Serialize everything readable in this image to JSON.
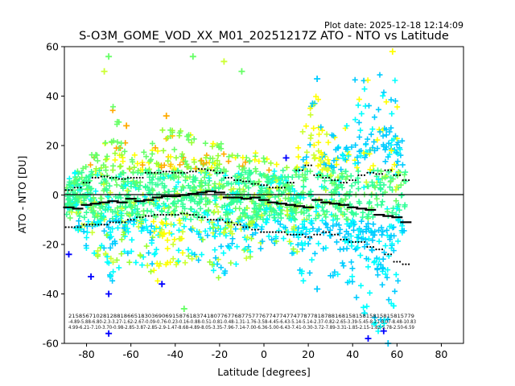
{
  "plot_date": "Plot date: 2025-12-18 12:14:09",
  "chart_data": {
    "type": "scatter",
    "title": "S-O3M_GOME_VOD_XX_M01_20251217Z ATO - NTO vs Latitude",
    "xlabel": "Latitude [degrees]",
    "ylabel": "ATO - NTO [DU]",
    "xlim": [
      -90,
      90
    ],
    "ylim": [
      -60,
      60
    ],
    "xticks": [
      -80,
      -60,
      -40,
      -20,
      0,
      20,
      40,
      60,
      80
    ],
    "yticks": [
      -60,
      -40,
      -20,
      0,
      20,
      40,
      60
    ],
    "grid": false,
    "zero_line": 0,
    "marker": "+",
    "point_colors": [
      "#00ffff",
      "#00ccff",
      "#33ff99",
      "#66ff66",
      "#99ff33",
      "#ccff33",
      "#ffff00",
      "#ffcc00",
      "#ffaa00",
      "#0000ff",
      "#0066ff"
    ],
    "envelope": [
      {
        "lat": -88,
        "upper": 8,
        "lower": -10
      },
      {
        "lat": -80,
        "upper": 14,
        "lower": -22
      },
      {
        "lat": -72,
        "upper": 22,
        "lower": -30
      },
      {
        "lat": -68,
        "upper": 42,
        "lower": -36
      },
      {
        "lat": -64,
        "upper": 24,
        "lower": -30
      },
      {
        "lat": -56,
        "upper": 18,
        "lower": -28
      },
      {
        "lat": -48,
        "upper": 22,
        "lower": -36
      },
      {
        "lat": -44,
        "upper": 30,
        "lower": -30
      },
      {
        "lat": -36,
        "upper": 26,
        "lower": -28
      },
      {
        "lat": -28,
        "upper": 24,
        "lower": -26
      },
      {
        "lat": -20,
        "upper": 22,
        "lower": -34
      },
      {
        "lat": -12,
        "upper": 20,
        "lower": -28
      },
      {
        "lat": -4,
        "upper": 18,
        "lower": -24
      },
      {
        "lat": 4,
        "upper": 14,
        "lower": -20
      },
      {
        "lat": 12,
        "upper": 12,
        "lower": -22
      },
      {
        "lat": 18,
        "upper": 28,
        "lower": -42
      },
      {
        "lat": 24,
        "upper": 44,
        "lower": -26
      },
      {
        "lat": 30,
        "upper": 24,
        "lower": -34
      },
      {
        "lat": 36,
        "upper": 30,
        "lower": -32
      },
      {
        "lat": 42,
        "upper": 50,
        "lower": -44
      },
      {
        "lat": 48,
        "upper": 48,
        "lower": -52
      },
      {
        "lat": 54,
        "upper": 50,
        "lower": -58
      },
      {
        "lat": 58,
        "upper": 56,
        "lower": -50
      },
      {
        "lat": 62,
        "upper": 30,
        "lower": -40
      },
      {
        "lat": 64,
        "upper": 8,
        "lower": -8
      }
    ],
    "outliers": [
      {
        "lat": -70,
        "value": -56,
        "color": "#0000ff"
      },
      {
        "lat": -70,
        "value": -40,
        "color": "#0000ff"
      },
      {
        "lat": -78,
        "value": -33,
        "color": "#0000ff"
      },
      {
        "lat": -88,
        "value": -24,
        "color": "#0000ff"
      },
      {
        "lat": -46,
        "value": -36,
        "color": "#0000ff"
      },
      {
        "lat": 54,
        "value": -55,
        "color": "#0000ff"
      },
      {
        "lat": 47,
        "value": -58,
        "color": "#0000ff"
      },
      {
        "lat": 10,
        "value": 15,
        "color": "#0000ff"
      },
      {
        "lat": 24,
        "value": 47,
        "color": "#00ccff"
      },
      {
        "lat": -32,
        "value": 56,
        "color": "#66ff66"
      },
      {
        "lat": -10,
        "value": 50,
        "color": "#66ff66"
      },
      {
        "lat": -18,
        "value": 54,
        "color": "#ccff33"
      },
      {
        "lat": -70,
        "value": 56,
        "color": "#66ff66"
      },
      {
        "lat": -72,
        "value": 50,
        "color": "#ccff33"
      },
      {
        "lat": -44,
        "value": 32,
        "color": "#ffaa00"
      },
      {
        "lat": -62,
        "value": 28,
        "color": "#ffaa00"
      },
      {
        "lat": -36,
        "value": -46,
        "color": "#66ff66"
      },
      {
        "lat": 58,
        "value": 58,
        "color": "#ffff00"
      },
      {
        "lat": 56,
        "value": -60,
        "color": "#00ccff"
      },
      {
        "lat": 24,
        "value": -38,
        "color": "#00ccff"
      }
    ],
    "median": [
      {
        "lat": -88,
        "value": -5
      },
      {
        "lat": -84,
        "value": -5.5
      },
      {
        "lat": -80,
        "value": -4
      },
      {
        "lat": -76,
        "value": -3.5
      },
      {
        "lat": -72,
        "value": -3
      },
      {
        "lat": -68,
        "value": -2.5
      },
      {
        "lat": -64,
        "value": -3
      },
      {
        "lat": -60,
        "value": -1.5
      },
      {
        "lat": -56,
        "value": -2.5
      },
      {
        "lat": -52,
        "value": -2
      },
      {
        "lat": -48,
        "value": -1
      },
      {
        "lat": -44,
        "value": -0.5
      },
      {
        "lat": -40,
        "value": -0.5
      },
      {
        "lat": -36,
        "value": 0
      },
      {
        "lat": -32,
        "value": 0.5
      },
      {
        "lat": -28,
        "value": 1
      },
      {
        "lat": -24,
        "value": 1.5
      },
      {
        "lat": -20,
        "value": 1
      },
      {
        "lat": -16,
        "value": -1
      },
      {
        "lat": -12,
        "value": -1
      },
      {
        "lat": -8,
        "value": -1.5
      },
      {
        "lat": -4,
        "value": -1
      },
      {
        "lat": 0,
        "value": -2
      },
      {
        "lat": 4,
        "value": -3
      },
      {
        "lat": 8,
        "value": -3.5
      },
      {
        "lat": 12,
        "value": -4
      },
      {
        "lat": 16,
        "value": -4.5
      },
      {
        "lat": 20,
        "value": -5
      },
      {
        "lat": 24,
        "value": -2
      },
      {
        "lat": 28,
        "value": -3
      },
      {
        "lat": 32,
        "value": -3.5
      },
      {
        "lat": 36,
        "value": -4
      },
      {
        "lat": 40,
        "value": -5
      },
      {
        "lat": 44,
        "value": -5.5
      },
      {
        "lat": 48,
        "value": -6
      },
      {
        "lat": 52,
        "value": -8
      },
      {
        "lat": 56,
        "value": -8.5
      },
      {
        "lat": 60,
        "value": -9
      },
      {
        "lat": 64,
        "value": -11
      }
    ],
    "upper_quantile": [
      {
        "lat": -88,
        "value": 2
      },
      {
        "lat": -84,
        "value": 3
      },
      {
        "lat": -80,
        "value": 5
      },
      {
        "lat": -76,
        "value": 7
      },
      {
        "lat": -72,
        "value": 7.5
      },
      {
        "lat": -68,
        "value": 7
      },
      {
        "lat": -64,
        "value": 6.5
      },
      {
        "lat": -60,
        "value": 7
      },
      {
        "lat": -56,
        "value": 7
      },
      {
        "lat": -52,
        "value": 9
      },
      {
        "lat": -48,
        "value": 9
      },
      {
        "lat": -44,
        "value": 9.5
      },
      {
        "lat": -40,
        "value": 9
      },
      {
        "lat": -36,
        "value": 9
      },
      {
        "lat": -32,
        "value": 9.5
      },
      {
        "lat": -28,
        "value": 10.5
      },
      {
        "lat": -24,
        "value": 10
      },
      {
        "lat": -20,
        "value": 9
      },
      {
        "lat": -16,
        "value": 7
      },
      {
        "lat": -12,
        "value": 6
      },
      {
        "lat": -8,
        "value": 5.5
      },
      {
        "lat": -4,
        "value": 4.5
      },
      {
        "lat": 0,
        "value": 4
      },
      {
        "lat": 4,
        "value": 3
      },
      {
        "lat": 8,
        "value": 3
      },
      {
        "lat": 12,
        "value": 5
      },
      {
        "lat": 16,
        "value": 10
      },
      {
        "lat": 20,
        "value": 12
      },
      {
        "lat": 24,
        "value": 8
      },
      {
        "lat": 28,
        "value": 7
      },
      {
        "lat": 32,
        "value": 6
      },
      {
        "lat": 36,
        "value": 5
      },
      {
        "lat": 40,
        "value": 6
      },
      {
        "lat": 44,
        "value": 8
      },
      {
        "lat": 48,
        "value": 9
      },
      {
        "lat": 52,
        "value": 8.5
      },
      {
        "lat": 56,
        "value": 10
      },
      {
        "lat": 60,
        "value": 8
      },
      {
        "lat": 64,
        "value": 6
      }
    ],
    "lower_quantile": [
      {
        "lat": -88,
        "value": -13
      },
      {
        "lat": -84,
        "value": -13
      },
      {
        "lat": -80,
        "value": -12
      },
      {
        "lat": -76,
        "value": -12
      },
      {
        "lat": -72,
        "value": -12
      },
      {
        "lat": -68,
        "value": -11
      },
      {
        "lat": -64,
        "value": -11
      },
      {
        "lat": -60,
        "value": -10
      },
      {
        "lat": -56,
        "value": -9
      },
      {
        "lat": -52,
        "value": -8.5
      },
      {
        "lat": -48,
        "value": -8
      },
      {
        "lat": -44,
        "value": -8
      },
      {
        "lat": -40,
        "value": -8
      },
      {
        "lat": -36,
        "value": -7.5
      },
      {
        "lat": -32,
        "value": -8
      },
      {
        "lat": -28,
        "value": -9
      },
      {
        "lat": -24,
        "value": -10
      },
      {
        "lat": -20,
        "value": -10
      },
      {
        "lat": -16,
        "value": -11
      },
      {
        "lat": -12,
        "value": -12
      },
      {
        "lat": -8,
        "value": -13
      },
      {
        "lat": -4,
        "value": -14
      },
      {
        "lat": 0,
        "value": -15
      },
      {
        "lat": 4,
        "value": -15
      },
      {
        "lat": 8,
        "value": -15
      },
      {
        "lat": 12,
        "value": -16
      },
      {
        "lat": 16,
        "value": -16
      },
      {
        "lat": 20,
        "value": -17
      },
      {
        "lat": 24,
        "value": -16
      },
      {
        "lat": 28,
        "value": -15
      },
      {
        "lat": 32,
        "value": -16
      },
      {
        "lat": 36,
        "value": -18
      },
      {
        "lat": 40,
        "value": -19
      },
      {
        "lat": 44,
        "value": -19
      },
      {
        "lat": 48,
        "value": -21
      },
      {
        "lat": 52,
        "value": -22
      },
      {
        "lat": 56,
        "value": -24
      },
      {
        "lat": 60,
        "value": -27
      },
      {
        "lat": 64,
        "value": -28
      }
    ],
    "bin_stats": {
      "row1": "2158567102812881866518303690691587618374180776776877577767747747747787781878816815815815815815815779",
      "row2": "-4.89-5.88-6.80-2.3-3.27-1.62-2.67-0.09-0.76-0.23-0.16-0.88-0.51-0.81-0.48-1.31-1.76-3.58-4.45-6.43-5.14-5.14-2.37-0.82-2.65-3.39-5.45-8.21-8.07-8.48-10.83",
      "row3": "4.99-6.21-7.10-3.70-0.98-2.85-3.87-2.85-2.9-1.47-8.68-4.89-8.05-3.35-7.96-7.14-7.00-6.36-5.00-6.43-7.41-0.30-3.72-7.89-3.31-1.85-2.15-1.82-5.78-2.50-6.59"
    }
  }
}
